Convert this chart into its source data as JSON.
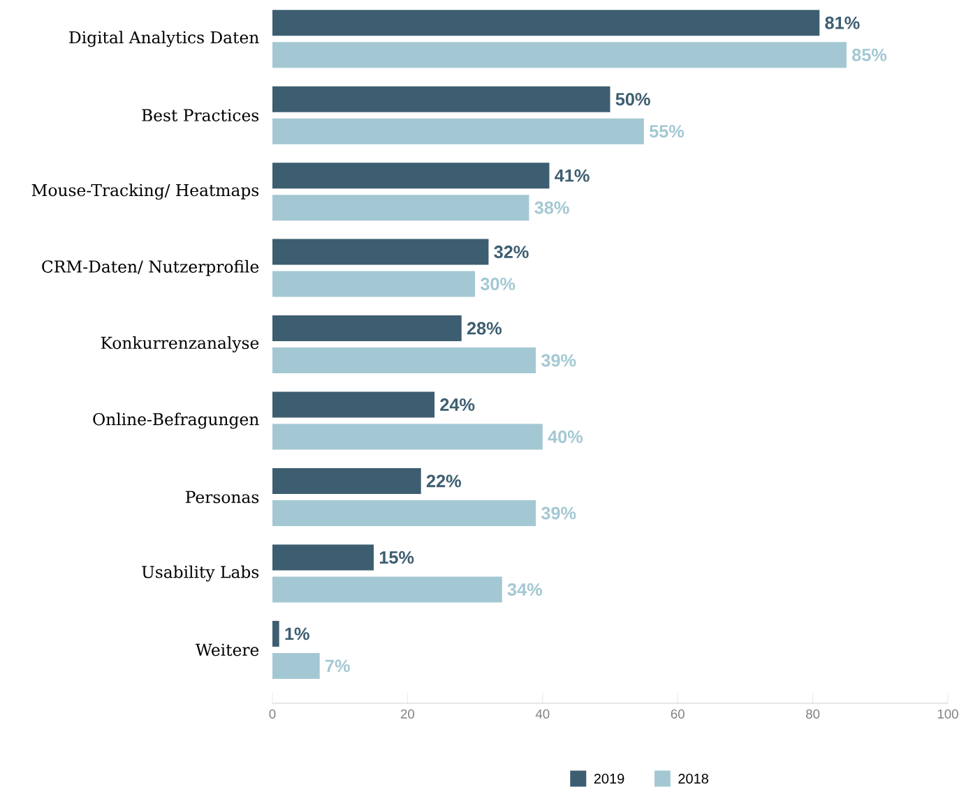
{
  "chart_data": {
    "type": "bar",
    "orientation": "horizontal",
    "categories": [
      "Digital Analytics Daten",
      "Best Practices",
      "Mouse-Tracking/ Heatmaps",
      "CRM-Daten/ Nutzerprofile",
      "Konkurrenzanalyse",
      "Online-Befragungen",
      "Personas",
      "Usability Labs",
      "Weitere"
    ],
    "series": [
      {
        "name": "2019",
        "color": "#3d5e70",
        "values": [
          81,
          50,
          41,
          32,
          28,
          24,
          22,
          15,
          1
        ],
        "value_labels": [
          "81%",
          "50%",
          "41%",
          "32%",
          "28%",
          "24%",
          "22%",
          "15%",
          "1%"
        ]
      },
      {
        "name": "2018",
        "color": "#a3c8d3",
        "values": [
          85,
          55,
          38,
          30,
          39,
          40,
          39,
          34,
          7
        ],
        "value_labels": [
          "85%",
          "55%",
          "38%",
          "30%",
          "39%",
          "40%",
          "39%",
          "34%",
          "7%"
        ]
      }
    ],
    "xlim": [
      0,
      100
    ],
    "xticks": [
      0,
      20,
      40,
      60,
      80,
      100
    ],
    "legend": "bottom"
  }
}
